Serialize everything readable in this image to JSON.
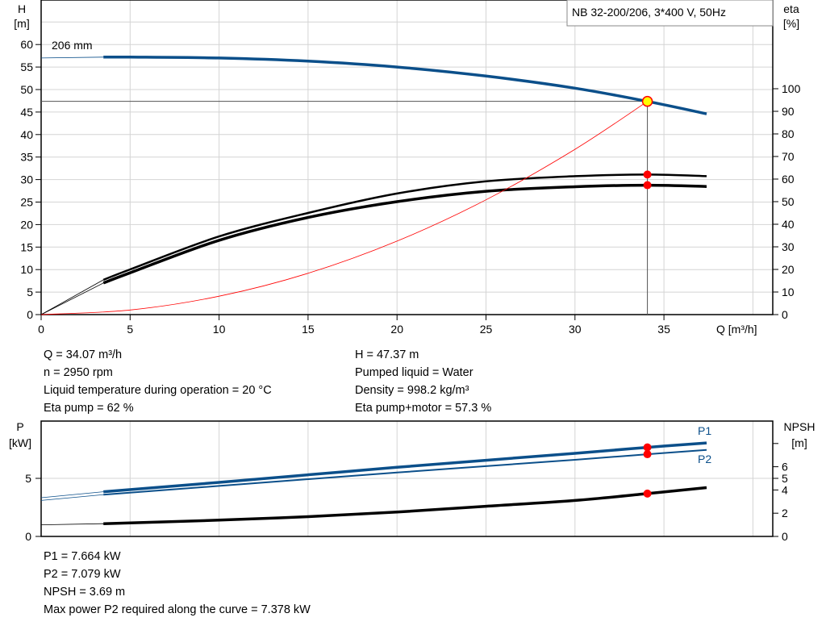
{
  "chart_data": [
    {
      "type": "line",
      "title": "NB 32-200/206, 3*400 V, 50Hz",
      "xlabel": "Q [m³/h]",
      "ylabel_left": [
        "H",
        "[m]"
      ],
      "ylabel_right": [
        "eta",
        "[%]"
      ],
      "xlim": [
        0,
        41
      ],
      "ylim_left": [
        0,
        70
      ],
      "ylim_right": [
        0,
        140
      ],
      "x_ticks": [
        0,
        5,
        10,
        15,
        20,
        25,
        30,
        35
      ],
      "y_ticks_left": [
        0,
        5,
        10,
        15,
        20,
        25,
        30,
        35,
        40,
        45,
        50,
        55,
        60
      ],
      "y_ticks_right": [
        0,
        10,
        20,
        30,
        40,
        50,
        60,
        70,
        80,
        90,
        100
      ],
      "grid": true,
      "annotation": "206 mm",
      "operating_point": {
        "Q": 34.07,
        "H": 47.37,
        "eta_pump": 62,
        "eta_pump_motor": 57.3
      },
      "series": [
        {
          "axis": "left",
          "color": "#0b4f8a",
          "x": [
            0,
            3.5,
            5,
            10,
            15,
            20,
            25,
            30,
            34.07,
            37.4
          ],
          "y": [
            57.0,
            57.2,
            57.2,
            57.0,
            56.3,
            55.0,
            53.0,
            50.3,
            47.37,
            44.6
          ]
        },
        {
          "axis": "right",
          "color": "#000000",
          "x": [
            0,
            3.5,
            5,
            10,
            15,
            20,
            25,
            30,
            34.07,
            37.4
          ],
          "y": [
            0,
            15.4,
            20,
            34.6,
            45,
            53.6,
            59,
            61.3,
            62,
            61.3
          ]
        },
        {
          "axis": "right",
          "color": "#000000",
          "x": [
            0,
            3.5,
            5,
            10,
            15,
            20,
            25,
            30,
            34.07,
            37.4
          ],
          "y": [
            0,
            14,
            18.5,
            32.9,
            43,
            50,
            54.6,
            56.6,
            57.3,
            56.7
          ]
        },
        {
          "axis": "left",
          "color": "#ff0000",
          "x": [
            0,
            5,
            10,
            15,
            20,
            25,
            30,
            34.07
          ],
          "y": [
            0,
            1.02,
            4.08,
            9.18,
            16.32,
            25.5,
            36.72,
            47.37
          ]
        }
      ]
    },
    {
      "type": "line",
      "ylabel_left": [
        "P",
        "[kW]"
      ],
      "ylabel_right": [
        "NPSH",
        "[m]"
      ],
      "xlim": [
        0,
        41
      ],
      "ylim_left": [
        0,
        9.9
      ],
      "ylim_right": [
        0,
        9.9
      ],
      "y_ticks_left": [
        0,
        5
      ],
      "y_ticks_right": [
        0,
        2,
        4,
        5,
        6,
        8
      ],
      "y_tick_labels_right": [
        "0",
        "2",
        "4",
        "5",
        "6",
        ""
      ],
      "grid": true,
      "series": [
        {
          "name": "P1",
          "axis": "left",
          "color": "#0b4f8a",
          "x": [
            0,
            3.5,
            10,
            20,
            30,
            34.07,
            37.4
          ],
          "y": [
            3.33,
            3.85,
            4.65,
            5.95,
            7.15,
            7.664,
            8.05
          ]
        },
        {
          "name": "P2",
          "axis": "left",
          "color": "#0b4f8a",
          "x": [
            0,
            3.5,
            10,
            20,
            30,
            34.07,
            37.4
          ],
          "y": [
            3.1,
            3.6,
            4.35,
            5.5,
            6.6,
            7.079,
            7.45
          ]
        },
        {
          "axis": "right",
          "color": "#000000",
          "x": [
            0,
            3.5,
            10,
            15,
            20,
            25,
            30,
            34.07,
            37.4
          ],
          "y": [
            1.0,
            1.1,
            1.4,
            1.7,
            2.1,
            2.6,
            3.1,
            3.69,
            4.2
          ]
        }
      ],
      "operating_point": {
        "Q": 34.07,
        "P1": 7.664,
        "P2": 7.079,
        "NPSH": 3.69
      }
    }
  ],
  "info_upper": {
    "left": [
      "Q = 34.07 m³/h",
      "n = 2950 rpm",
      "Liquid temperature during operation = 20 °C",
      "Eta pump = 62 %"
    ],
    "right": [
      "H = 47.37 m",
      "Pumped liquid = Water",
      "Density = 998.2 kg/m³",
      "Eta pump+motor = 57.3 %"
    ]
  },
  "info_lower": [
    "P1 = 7.664 kW",
    "P2 = 7.079 kW",
    "NPSH = 3.69 m",
    "Max power P2 required along the curve = 7.378 kW"
  ],
  "colors": {
    "pump_curve": "#0b4f8a",
    "system_curve": "#ff0000",
    "marker": "#ff0000",
    "duty_point": "#ffff00",
    "grid": "#d4d4d4"
  }
}
